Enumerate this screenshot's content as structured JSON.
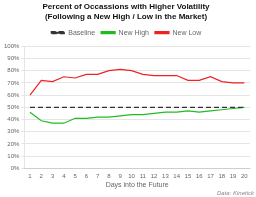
{
  "chart_data": {
    "type": "line",
    "title": [
      "Percent of Occassions with Higher Volatility",
      "(Following a New High / Low in the Market)"
    ],
    "xlabel": "Days into the Future",
    "annotations": [
      "Data: Kinetick"
    ],
    "x": [
      1,
      2,
      3,
      4,
      5,
      6,
      7,
      8,
      9,
      10,
      11,
      12,
      13,
      14,
      15,
      16,
      17,
      18,
      19,
      20
    ],
    "series": [
      {
        "name": "Baseline",
        "color": "#333333",
        "line_style": "dashed",
        "values": [
          0.5,
          0.5,
          0.5,
          0.5,
          0.5,
          0.5,
          0.5,
          0.5,
          0.5,
          0.5,
          0.5,
          0.5,
          0.5,
          0.5,
          0.5,
          0.5,
          0.5,
          0.5,
          0.5,
          0.5
        ]
      },
      {
        "name": "New High",
        "color": "#22bb22",
        "line_style": "solid",
        "values": [
          0.46,
          0.39,
          0.37,
          0.37,
          0.41,
          0.41,
          0.42,
          0.42,
          0.43,
          0.44,
          0.44,
          0.45,
          0.46,
          0.46,
          0.47,
          0.46,
          0.47,
          0.48,
          0.49,
          0.5
        ]
      },
      {
        "name": "New Low",
        "color": "#ee2222",
        "line_style": "solid",
        "values": [
          0.6,
          0.72,
          0.71,
          0.75,
          0.74,
          0.77,
          0.77,
          0.8,
          0.81,
          0.8,
          0.77,
          0.76,
          0.76,
          0.76,
          0.72,
          0.72,
          0.75,
          0.71,
          0.7,
          0.7
        ]
      }
    ],
    "xlim": [
      0.5,
      20.5
    ],
    "xticks": [
      1,
      2,
      3,
      4,
      5,
      6,
      7,
      8,
      9,
      10,
      11,
      12,
      13,
      14,
      15,
      16,
      17,
      18,
      19,
      20
    ],
    "ylim": [
      0.0,
      1.0
    ],
    "yticks": [
      {
        "value": 0.0,
        "label": "0%"
      },
      {
        "value": 0.1,
        "label": "10%"
      },
      {
        "value": 0.2,
        "label": "20%"
      },
      {
        "value": 0.3,
        "label": "30%"
      },
      {
        "value": 0.4,
        "label": "40%"
      },
      {
        "value": 0.5,
        "label": "50%"
      },
      {
        "value": 0.6,
        "label": "60%"
      },
      {
        "value": 0.7,
        "label": "70%"
      },
      {
        "value": 0.8,
        "label": "80%"
      },
      {
        "value": 0.9,
        "label": "90%"
      },
      {
        "value": 1.0,
        "label": "100%"
      }
    ],
    "grid": "y",
    "legend": "top"
  }
}
